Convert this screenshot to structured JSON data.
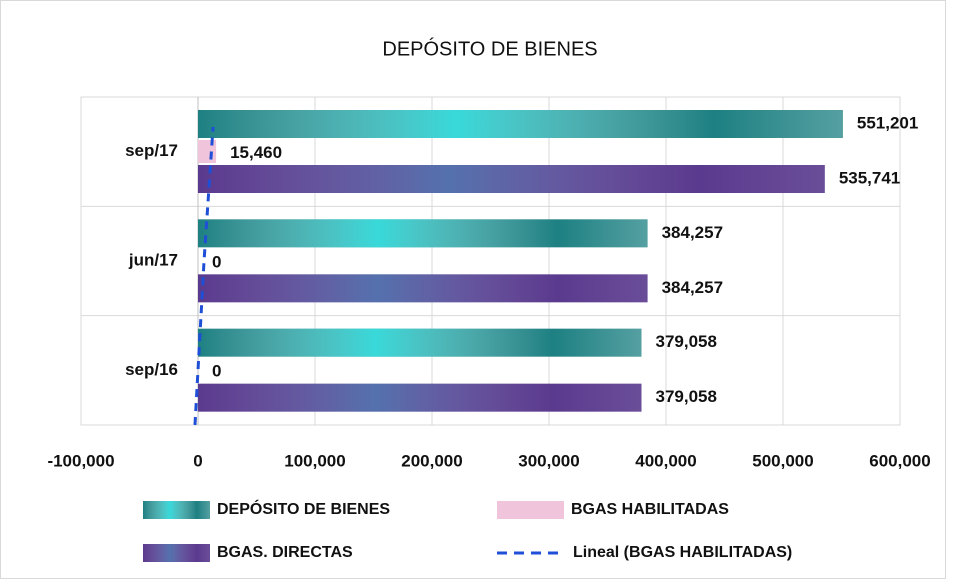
{
  "chart_data": {
    "type": "hbar",
    "title": "DEPÓSITO DE BIENES",
    "categories": [
      "sep/16",
      "jun/17",
      "sep/17"
    ],
    "series": [
      {
        "name": "DEPÓSITO DE BIENES",
        "color": "#1d8082",
        "values": [
          379058,
          384257,
          551201
        ],
        "value_labels": [
          "379,058",
          "384,257",
          "551,201"
        ]
      },
      {
        "name": "BGAS HABILITADAS",
        "color": "#f0c4da",
        "values": [
          0,
          0,
          15460
        ],
        "value_labels": [
          "0",
          "0",
          "15,460"
        ]
      },
      {
        "name": "BGAS. DIRECTAS",
        "color": "#5a3a8e",
        "values": [
          379058,
          384257,
          535741
        ],
        "value_labels": [
          "379,058",
          "384,257",
          "535,741"
        ]
      }
    ],
    "trendline": {
      "name": "Lineal (BGAS HABILITADAS)",
      "color": "#1f4fd6",
      "values": [
        -2577,
        5153,
        12883
      ]
    },
    "xlim": [
      -100000,
      600000
    ],
    "xticks": [
      {
        "value": -100000,
        "label": "-100,000"
      },
      {
        "value": 0,
        "label": "0"
      },
      {
        "value": 100000,
        "label": "100,000"
      },
      {
        "value": 200000,
        "label": "200,000"
      },
      {
        "value": 300000,
        "label": "300,000"
      },
      {
        "value": 400000,
        "label": "400,000"
      },
      {
        "value": 500000,
        "label": "500,000"
      },
      {
        "value": 600000,
        "label": "600,000"
      }
    ],
    "grid": true
  }
}
